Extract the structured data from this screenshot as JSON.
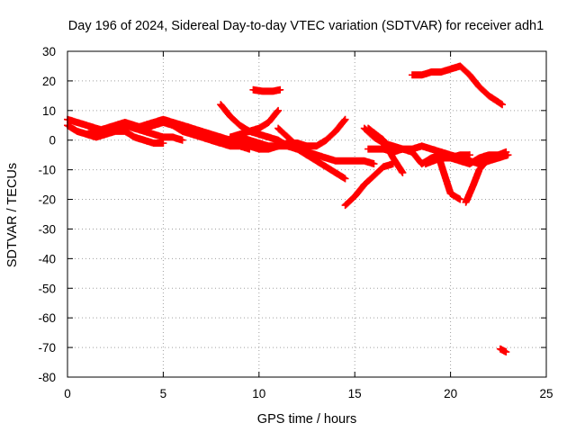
{
  "chart_data": {
    "type": "scatter",
    "title": "Day 196 of 2024, Sidereal Day-to-day VTEC variation (SDTVAR) for receiver adh1",
    "xlabel": "GPS time / hours",
    "ylabel": "SDTVAR / TECUs",
    "xlim": [
      0,
      25
    ],
    "ylim": [
      -80,
      30
    ],
    "x_ticks": [
      0,
      5,
      10,
      15,
      20,
      25
    ],
    "y_ticks": [
      30,
      20,
      10,
      0,
      -10,
      -20,
      -30,
      -40,
      -50,
      -60,
      -70,
      -80
    ],
    "grid": true,
    "legend": "none",
    "marker": "plus",
    "color": "#ff0000",
    "series": [
      {
        "x": [
          0,
          0.5,
          1,
          1.5,
          2,
          2.5,
          3,
          3.5,
          4,
          4.5,
          5,
          5.5,
          6
        ],
        "y": [
          7,
          6,
          5,
          4,
          3,
          4,
          5,
          4,
          3,
          2,
          1,
          1,
          0
        ]
      },
      {
        "x": [
          0,
          0.5,
          1,
          1.5,
          2,
          2.5,
          3,
          3.5,
          4,
          4.5,
          5
        ],
        "y": [
          5,
          3,
          2,
          1,
          2,
          3,
          3,
          1,
          0,
          -1,
          -1
        ]
      },
      {
        "x": [
          1,
          1.5,
          2,
          2.5,
          3,
          3.5,
          4,
          4.5,
          5,
          5.5,
          6,
          6.5,
          7
        ],
        "y": [
          2,
          3,
          4,
          5,
          6,
          5,
          4,
          5,
          6,
          6,
          4,
          3,
          2
        ]
      },
      {
        "x": [
          3.5,
          4,
          4.5,
          5,
          5.5,
          6,
          6.5,
          7,
          7.5,
          8,
          8.5,
          9
        ],
        "y": [
          4,
          5,
          6,
          7,
          6,
          5,
          4,
          3,
          2,
          1,
          0,
          -1
        ]
      },
      {
        "x": [
          5,
          5.5,
          6,
          6.5,
          7,
          7.5,
          8,
          8.5,
          9,
          9.5
        ],
        "y": [
          6,
          5,
          3,
          2,
          1,
          0,
          -1,
          -2,
          -2,
          -3
        ]
      },
      {
        "x": [
          6,
          6.5,
          7,
          7.5,
          8,
          8.5,
          9,
          9.5,
          10,
          10.5,
          11,
          11.5,
          12,
          12.5,
          13
        ],
        "y": [
          5,
          4,
          2,
          0,
          -1,
          0,
          1,
          0,
          -1,
          -2,
          -2,
          -2,
          -3,
          -4,
          -5
        ]
      },
      {
        "x": [
          8,
          8.5,
          9,
          9.5,
          10,
          10.5,
          11,
          11.5,
          12,
          12.5,
          13,
          13.5,
          14,
          14.5
        ],
        "y": [
          12,
          8,
          5,
          3,
          2,
          1,
          0,
          -2,
          -3,
          -5,
          -7,
          -9,
          -11,
          -13
        ]
      },
      {
        "x": [
          8.5,
          9,
          9.5,
          10,
          10.5,
          11
        ],
        "y": [
          1,
          2,
          3,
          4,
          6,
          10
        ]
      },
      {
        "x": [
          9.7,
          10.2,
          10.7,
          11.1
        ],
        "y": [
          17,
          16.5,
          16.5,
          17
        ]
      },
      {
        "x": [
          9,
          9.5,
          10,
          10.5,
          11,
          11.5,
          12,
          12.5,
          13,
          13.5,
          14,
          14.5
        ],
        "y": [
          -1,
          -2,
          -3,
          -3,
          -2,
          -1,
          -1,
          -2,
          -2,
          0,
          3,
          7
        ]
      },
      {
        "x": [
          11,
          11.5,
          12,
          12.5,
          13,
          13.5,
          14,
          14.5,
          15,
          15.5,
          16
        ],
        "y": [
          4,
          1,
          -2,
          -4,
          -5,
          -6,
          -7,
          -7,
          -7,
          -7,
          -8
        ]
      },
      {
        "x": [
          14.5,
          15,
          15.5,
          16,
          16.5,
          17
        ],
        "y": [
          -22,
          -19,
          -15,
          -12,
          -9,
          -8
        ]
      },
      {
        "x": [
          15.7,
          16.5,
          17,
          17.5
        ],
        "y": [
          4,
          0,
          -6,
          -11
        ]
      },
      {
        "x": [
          15.5,
          16,
          16.5,
          17,
          17.5,
          18,
          18.5,
          19,
          19.5,
          20,
          20.5,
          21,
          21.5,
          22,
          22.5,
          23
        ],
        "y": [
          4,
          1,
          -1,
          -2,
          -3,
          -3,
          -2,
          -3,
          -4,
          -5,
          -6,
          -7,
          -8,
          -7,
          -6,
          -5
        ]
      },
      {
        "x": [
          15.7,
          16.5,
          17,
          17.5,
          18,
          18.5,
          19,
          19.5,
          20,
          20.5,
          21
        ],
        "y": [
          -3,
          -3,
          -4,
          -3,
          -4,
          -8,
          -6,
          -5,
          -6,
          -5,
          -5
        ]
      },
      {
        "x": [
          18,
          18.5,
          19,
          19.5,
          20,
          20.5,
          21,
          21.5,
          22,
          22.7
        ],
        "y": [
          22,
          22,
          23,
          23,
          24,
          25,
          22,
          18,
          15,
          12
        ]
      },
      {
        "x": [
          18.7,
          19.5,
          20,
          20.5,
          21,
          21.5,
          22,
          22.5,
          22.9
        ],
        "y": [
          -8,
          -6,
          -6,
          -7,
          -8,
          -6,
          -5,
          -5,
          -5
        ]
      },
      {
        "x": [
          19.3,
          19.6,
          20,
          20.5
        ],
        "y": [
          -4,
          -10,
          -18,
          -20
        ]
      },
      {
        "x": [
          20.8,
          21.2,
          21.5,
          22,
          22.5,
          22.9
        ],
        "y": [
          -21,
          -15,
          -10,
          -6,
          -5,
          -4
        ]
      },
      {
        "x": [
          22.6,
          22.9
        ],
        "y": [
          -70.5,
          -71.5
        ]
      }
    ]
  }
}
